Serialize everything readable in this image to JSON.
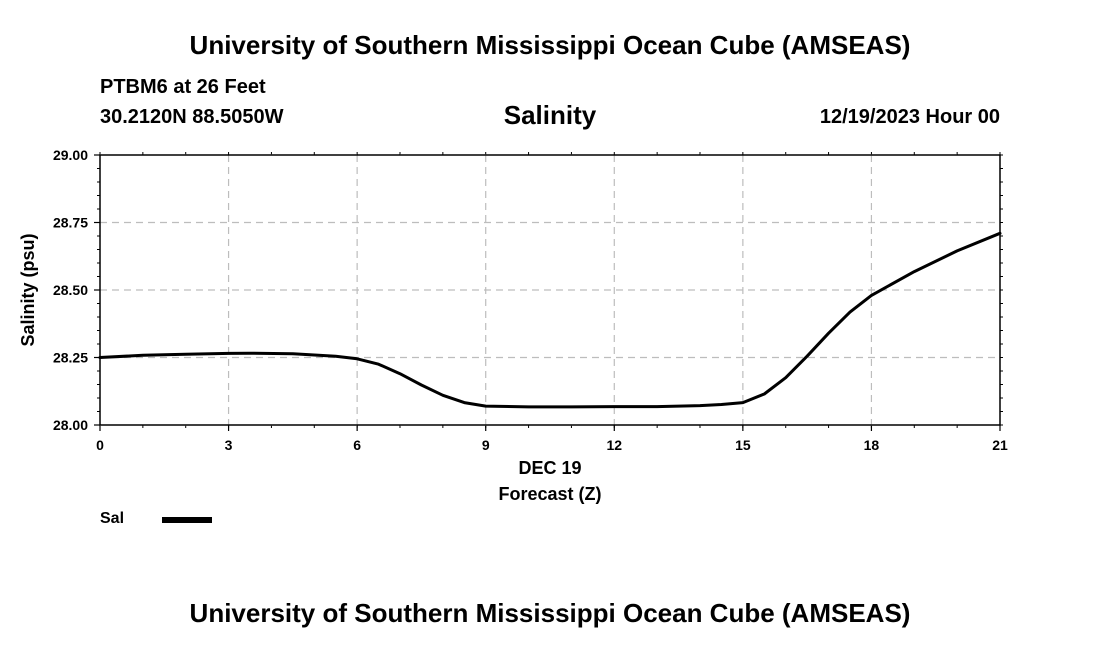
{
  "header": {
    "title": "University of Southern Mississippi Ocean Cube (AMSEAS)",
    "station": "PTBM6 at 26 Feet",
    "coords": "30.2120N  88.5050W",
    "chart_title": "Salinity",
    "run_time": "12/19/2023 Hour 00"
  },
  "footer": {
    "title": "University of Southern Mississippi Ocean Cube (AMSEAS)"
  },
  "legend": {
    "label": "Sal"
  },
  "chart_data": {
    "type": "line",
    "title": "Salinity",
    "xlabel": "Forecast (Z)",
    "xdate_label": "DEC 19",
    "ylabel": "Salinity (psu)",
    "xlim": [
      0,
      21
    ],
    "ylim": [
      28.0,
      29.0
    ],
    "xticks": [
      0,
      3,
      6,
      9,
      12,
      15,
      18,
      21
    ],
    "xtick_labels": [
      "0",
      "3",
      "6",
      "9",
      "12",
      "15",
      "18",
      "21"
    ],
    "yticks": [
      28.0,
      28.25,
      28.5,
      28.75,
      29.0
    ],
    "ytick_labels": [
      "28.00",
      "28.25",
      "28.50",
      "28.75",
      "29.00"
    ],
    "grid": true,
    "series": [
      {
        "name": "Sal",
        "color": "#000000",
        "x": [
          0,
          1,
          2,
          3,
          3.5,
          4.5,
          5.5,
          6,
          6.5,
          7,
          7.5,
          8,
          8.5,
          9,
          10,
          11,
          12,
          13,
          14,
          14.5,
          15,
          15.5,
          16,
          16.5,
          17,
          17.5,
          18,
          19,
          20,
          21
        ],
        "values": [
          28.25,
          28.258,
          28.262,
          28.265,
          28.266,
          28.264,
          28.255,
          28.245,
          28.225,
          28.19,
          28.148,
          28.11,
          28.083,
          28.07,
          28.067,
          28.067,
          28.068,
          28.068,
          28.072,
          28.076,
          28.083,
          28.115,
          28.175,
          28.255,
          28.34,
          28.418,
          28.48,
          28.568,
          28.645,
          28.71
        ]
      }
    ]
  }
}
